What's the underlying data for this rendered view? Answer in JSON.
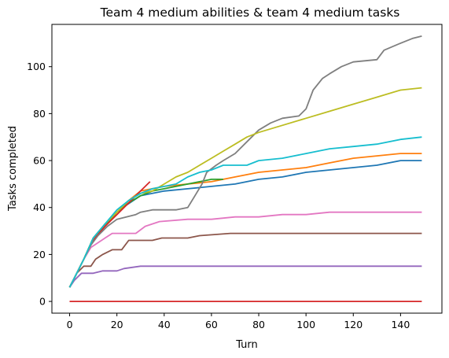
{
  "chart_data": {
    "type": "line",
    "title": "Team 4 medium abilities & team 4 medium tasks",
    "xlabel": "Turn",
    "ylabel": "Tasks completed",
    "xlim": [
      -7.5,
      157.5
    ],
    "ylim": [
      -5,
      118
    ],
    "xticks": [
      0,
      20,
      40,
      60,
      80,
      100,
      120,
      140
    ],
    "yticks": [
      0,
      20,
      40,
      60,
      80,
      100
    ],
    "grid": false,
    "legend": "none",
    "series": [
      {
        "color": "#1f77b4",
        "points": [
          [
            0,
            6
          ],
          [
            3,
            12
          ],
          [
            6,
            18
          ],
          [
            10,
            27
          ],
          [
            15,
            33
          ],
          [
            20,
            38
          ],
          [
            24,
            41
          ],
          [
            30,
            45
          ],
          [
            40,
            47
          ],
          [
            50,
            48
          ],
          [
            60,
            49
          ],
          [
            70,
            50
          ],
          [
            80,
            52
          ],
          [
            90,
            53
          ],
          [
            100,
            55
          ],
          [
            110,
            56
          ],
          [
            120,
            57
          ],
          [
            130,
            58
          ],
          [
            140,
            60
          ],
          [
            149,
            60
          ]
        ]
      },
      {
        "color": "#ff7f0e",
        "points": [
          [
            0,
            6
          ],
          [
            3,
            12
          ],
          [
            6,
            18
          ],
          [
            10,
            27
          ],
          [
            15,
            32
          ],
          [
            20,
            38
          ],
          [
            25,
            43
          ],
          [
            30,
            47
          ],
          [
            40,
            49
          ],
          [
            50,
            50
          ],
          [
            60,
            51
          ],
          [
            70,
            53
          ],
          [
            80,
            55
          ],
          [
            90,
            56
          ],
          [
            100,
            57
          ],
          [
            110,
            59
          ],
          [
            120,
            61
          ],
          [
            130,
            62
          ],
          [
            140,
            63
          ],
          [
            149,
            63
          ]
        ]
      },
      {
        "color": "#2ca02c",
        "points": [
          [
            0,
            6
          ],
          [
            3,
            12
          ],
          [
            6,
            18
          ],
          [
            10,
            27
          ],
          [
            15,
            32
          ],
          [
            20,
            38
          ],
          [
            25,
            42
          ],
          [
            30,
            45
          ],
          [
            35,
            47
          ],
          [
            40,
            48
          ],
          [
            45,
            49
          ],
          [
            50,
            50
          ],
          [
            55,
            51
          ],
          [
            60,
            52
          ],
          [
            65,
            52
          ]
        ]
      },
      {
        "color": "#d62728",
        "points": [
          [
            0,
            6
          ],
          [
            3,
            12
          ],
          [
            6,
            18
          ],
          [
            10,
            26
          ],
          [
            15,
            32
          ],
          [
            20,
            37
          ],
          [
            25,
            42
          ],
          [
            30,
            47
          ],
          [
            34,
            51
          ]
        ]
      },
      {
        "color": "#d62728",
        "points": [
          [
            0,
            0
          ],
          [
            149,
            0
          ]
        ]
      },
      {
        "color": "#9467bd",
        "points": [
          [
            0,
            6
          ],
          [
            2,
            9
          ],
          [
            5,
            12
          ],
          [
            10,
            12
          ],
          [
            14,
            13
          ],
          [
            20,
            13
          ],
          [
            23,
            14
          ],
          [
            30,
            15
          ],
          [
            60,
            15
          ],
          [
            100,
            15
          ],
          [
            149,
            15
          ]
        ]
      },
      {
        "color": "#8c564b",
        "points": [
          [
            0,
            6
          ],
          [
            3,
            12
          ],
          [
            6,
            15
          ],
          [
            9,
            15
          ],
          [
            11,
            18
          ],
          [
            14,
            20
          ],
          [
            18,
            22
          ],
          [
            22,
            22
          ],
          [
            25,
            26
          ],
          [
            35,
            26
          ],
          [
            39,
            27
          ],
          [
            50,
            27
          ],
          [
            55,
            28
          ],
          [
            68,
            29
          ],
          [
            100,
            29
          ],
          [
            149,
            29
          ]
        ]
      },
      {
        "color": "#e377c2",
        "points": [
          [
            0,
            6
          ],
          [
            3,
            12
          ],
          [
            6,
            18
          ],
          [
            9,
            23
          ],
          [
            12,
            25
          ],
          [
            15,
            27
          ],
          [
            18,
            29
          ],
          [
            28,
            29
          ],
          [
            32,
            32
          ],
          [
            38,
            34
          ],
          [
            50,
            35
          ],
          [
            60,
            35
          ],
          [
            70,
            36
          ],
          [
            80,
            36
          ],
          [
            90,
            37
          ],
          [
            100,
            37
          ],
          [
            110,
            38
          ],
          [
            149,
            38
          ]
        ]
      },
      {
        "color": "#7f7f7f",
        "points": [
          [
            0,
            6
          ],
          [
            3,
            12
          ],
          [
            6,
            18
          ],
          [
            9,
            24
          ],
          [
            12,
            28
          ],
          [
            16,
            32
          ],
          [
            20,
            35
          ],
          [
            24,
            36
          ],
          [
            28,
            37
          ],
          [
            30,
            38
          ],
          [
            35,
            39
          ],
          [
            45,
            39
          ],
          [
            50,
            40
          ],
          [
            53,
            45
          ],
          [
            56,
            50
          ],
          [
            58,
            55
          ],
          [
            62,
            58
          ],
          [
            65,
            60
          ],
          [
            70,
            63
          ],
          [
            75,
            68
          ],
          [
            80,
            73
          ],
          [
            85,
            76
          ],
          [
            90,
            78
          ],
          [
            97,
            79
          ],
          [
            100,
            82
          ],
          [
            103,
            90
          ],
          [
            107,
            95
          ],
          [
            110,
            97
          ],
          [
            115,
            100
          ],
          [
            120,
            102
          ],
          [
            130,
            103
          ],
          [
            133,
            107
          ],
          [
            140,
            110
          ],
          [
            145,
            112
          ],
          [
            149,
            113
          ]
        ]
      },
      {
        "color": "#bcbd22",
        "points": [
          [
            0,
            6
          ],
          [
            3,
            12
          ],
          [
            6,
            18
          ],
          [
            10,
            27
          ],
          [
            15,
            33
          ],
          [
            20,
            38
          ],
          [
            25,
            43
          ],
          [
            30,
            46
          ],
          [
            35,
            47
          ],
          [
            40,
            50
          ],
          [
            45,
            53
          ],
          [
            50,
            55
          ],
          [
            55,
            58
          ],
          [
            60,
            61
          ],
          [
            65,
            64
          ],
          [
            70,
            67
          ],
          [
            75,
            70
          ],
          [
            80,
            72
          ],
          [
            90,
            75
          ],
          [
            100,
            78
          ],
          [
            110,
            81
          ],
          [
            120,
            84
          ],
          [
            130,
            87
          ],
          [
            140,
            90
          ],
          [
            149,
            91
          ]
        ]
      },
      {
        "color": "#17becf",
        "points": [
          [
            0,
            6
          ],
          [
            3,
            12
          ],
          [
            6,
            18
          ],
          [
            10,
            27
          ],
          [
            15,
            33
          ],
          [
            20,
            39
          ],
          [
            25,
            43
          ],
          [
            30,
            46
          ],
          [
            35,
            48
          ],
          [
            40,
            49
          ],
          [
            45,
            50
          ],
          [
            50,
            53
          ],
          [
            55,
            55
          ],
          [
            60,
            56
          ],
          [
            65,
            58
          ],
          [
            75,
            58
          ],
          [
            80,
            60
          ],
          [
            90,
            61
          ],
          [
            100,
            63
          ],
          [
            110,
            65
          ],
          [
            120,
            66
          ],
          [
            130,
            67
          ],
          [
            140,
            69
          ],
          [
            149,
            70
          ]
        ]
      }
    ]
  }
}
